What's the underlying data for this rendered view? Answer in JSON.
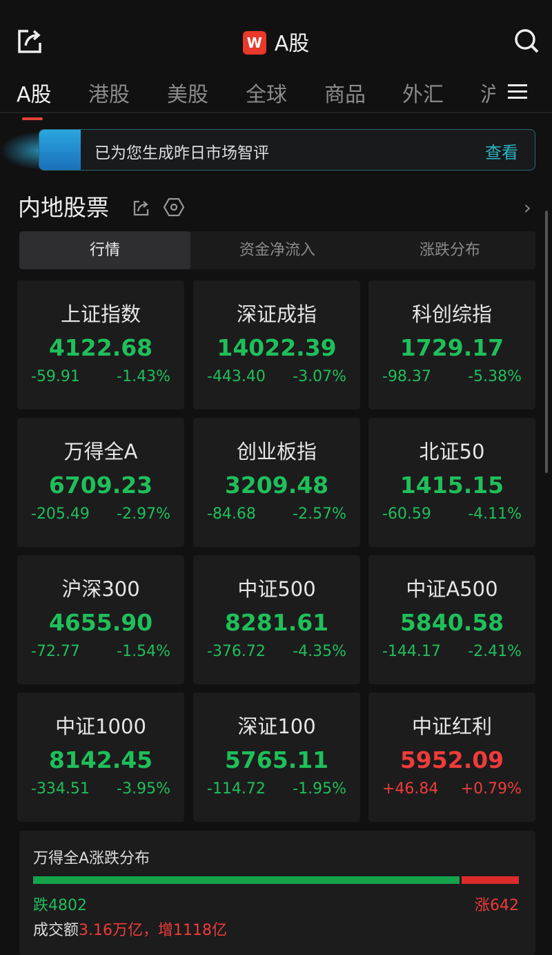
{
  "header": {
    "title": "A股",
    "logo": "W",
    "share_icon": "share-icon",
    "search_icon": "search-icon"
  },
  "tabs": [
    "A股",
    "港股",
    "美股",
    "全球",
    "商品",
    "外汇",
    "沪"
  ],
  "banner": {
    "text": "已为您生成昨日市场智评",
    "action": "查看"
  },
  "section": {
    "title": "内地股票"
  },
  "segments": [
    "行情",
    "资金净流入",
    "涨跌分布"
  ],
  "colors": {
    "up": "#ef3b3b",
    "down": "#1fbf5a",
    "accent": "#e34335",
    "link": "#2bb4c6"
  },
  "indices": [
    {
      "name": "上证指数",
      "value": "4122.68",
      "change": "-59.91",
      "pct": "-1.43%",
      "dir": "down"
    },
    {
      "name": "深证成指",
      "value": "14022.39",
      "change": "-443.40",
      "pct": "-3.07%",
      "dir": "down"
    },
    {
      "name": "科创综指",
      "value": "1729.17",
      "change": "-98.37",
      "pct": "-5.38%",
      "dir": "down"
    },
    {
      "name": "万得全A",
      "value": "6709.23",
      "change": "-205.49",
      "pct": "-2.97%",
      "dir": "down"
    },
    {
      "name": "创业板指",
      "value": "3209.48",
      "change": "-84.68",
      "pct": "-2.57%",
      "dir": "down"
    },
    {
      "name": "北证50",
      "value": "1415.15",
      "change": "-60.59",
      "pct": "-4.11%",
      "dir": "down"
    },
    {
      "name": "沪深300",
      "value": "4655.90",
      "change": "-72.77",
      "pct": "-1.54%",
      "dir": "down"
    },
    {
      "name": "中证500",
      "value": "8281.61",
      "change": "-376.72",
      "pct": "-4.35%",
      "dir": "down"
    },
    {
      "name": "中证A500",
      "value": "5840.58",
      "change": "-144.17",
      "pct": "-2.41%",
      "dir": "down"
    },
    {
      "name": "中证1000",
      "value": "8142.45",
      "change": "-334.51",
      "pct": "-3.95%",
      "dir": "down"
    },
    {
      "name": "深证100",
      "value": "5765.11",
      "change": "-114.72",
      "pct": "-1.95%",
      "dir": "down"
    },
    {
      "name": "中证红利",
      "value": "5952.09",
      "change": "+46.84",
      "pct": "+0.79%",
      "dir": "up"
    }
  ],
  "distribution": {
    "title": "万得全A涨跌分布",
    "down_label": "跌4802",
    "up_label": "涨642",
    "down": 4802,
    "up": 642,
    "volume_label": "成交额",
    "volume_value": "3.16万亿，增1118亿"
  }
}
